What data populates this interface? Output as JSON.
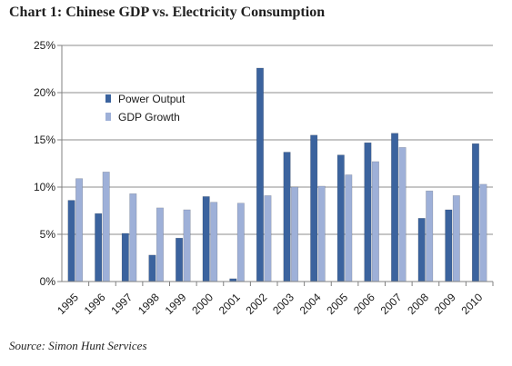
{
  "header": {
    "title": "Chart 1:  Chinese GDP vs. Electricity Consumption"
  },
  "footer": {
    "source": "Source: Simon Hunt Services"
  },
  "colors": {
    "power_output": "#3b639e",
    "gdp_growth": "#9eb0d8",
    "grid": "#8c8c8c",
    "axis": "#808080"
  },
  "chart_data": {
    "type": "bar",
    "title": "",
    "xlabel": "",
    "ylabel": "",
    "ylim": [
      0,
      25
    ],
    "yticks": [
      "0%",
      "5%",
      "10%",
      "15%",
      "20%",
      "25%"
    ],
    "grid": true,
    "legend_position": "upper-left inside plot",
    "categories": [
      "1995",
      "1996",
      "1997",
      "1998",
      "1999",
      "2000",
      "2001",
      "2002",
      "2003",
      "2004",
      "2005",
      "2006",
      "2007",
      "2008",
      "2009",
      "2010"
    ],
    "series": [
      {
        "name": "Power Output",
        "values": [
          8.6,
          7.2,
          5.1,
          2.8,
          4.6,
          9.0,
          0.3,
          22.6,
          13.7,
          15.5,
          13.4,
          14.7,
          15.7,
          6.7,
          7.6,
          14.6
        ]
      },
      {
        "name": "GDP Growth",
        "values": [
          10.9,
          11.6,
          9.3,
          7.8,
          7.6,
          8.4,
          8.3,
          9.1,
          10.0,
          10.1,
          11.3,
          12.7,
          14.2,
          9.6,
          9.1,
          10.3
        ]
      }
    ]
  }
}
